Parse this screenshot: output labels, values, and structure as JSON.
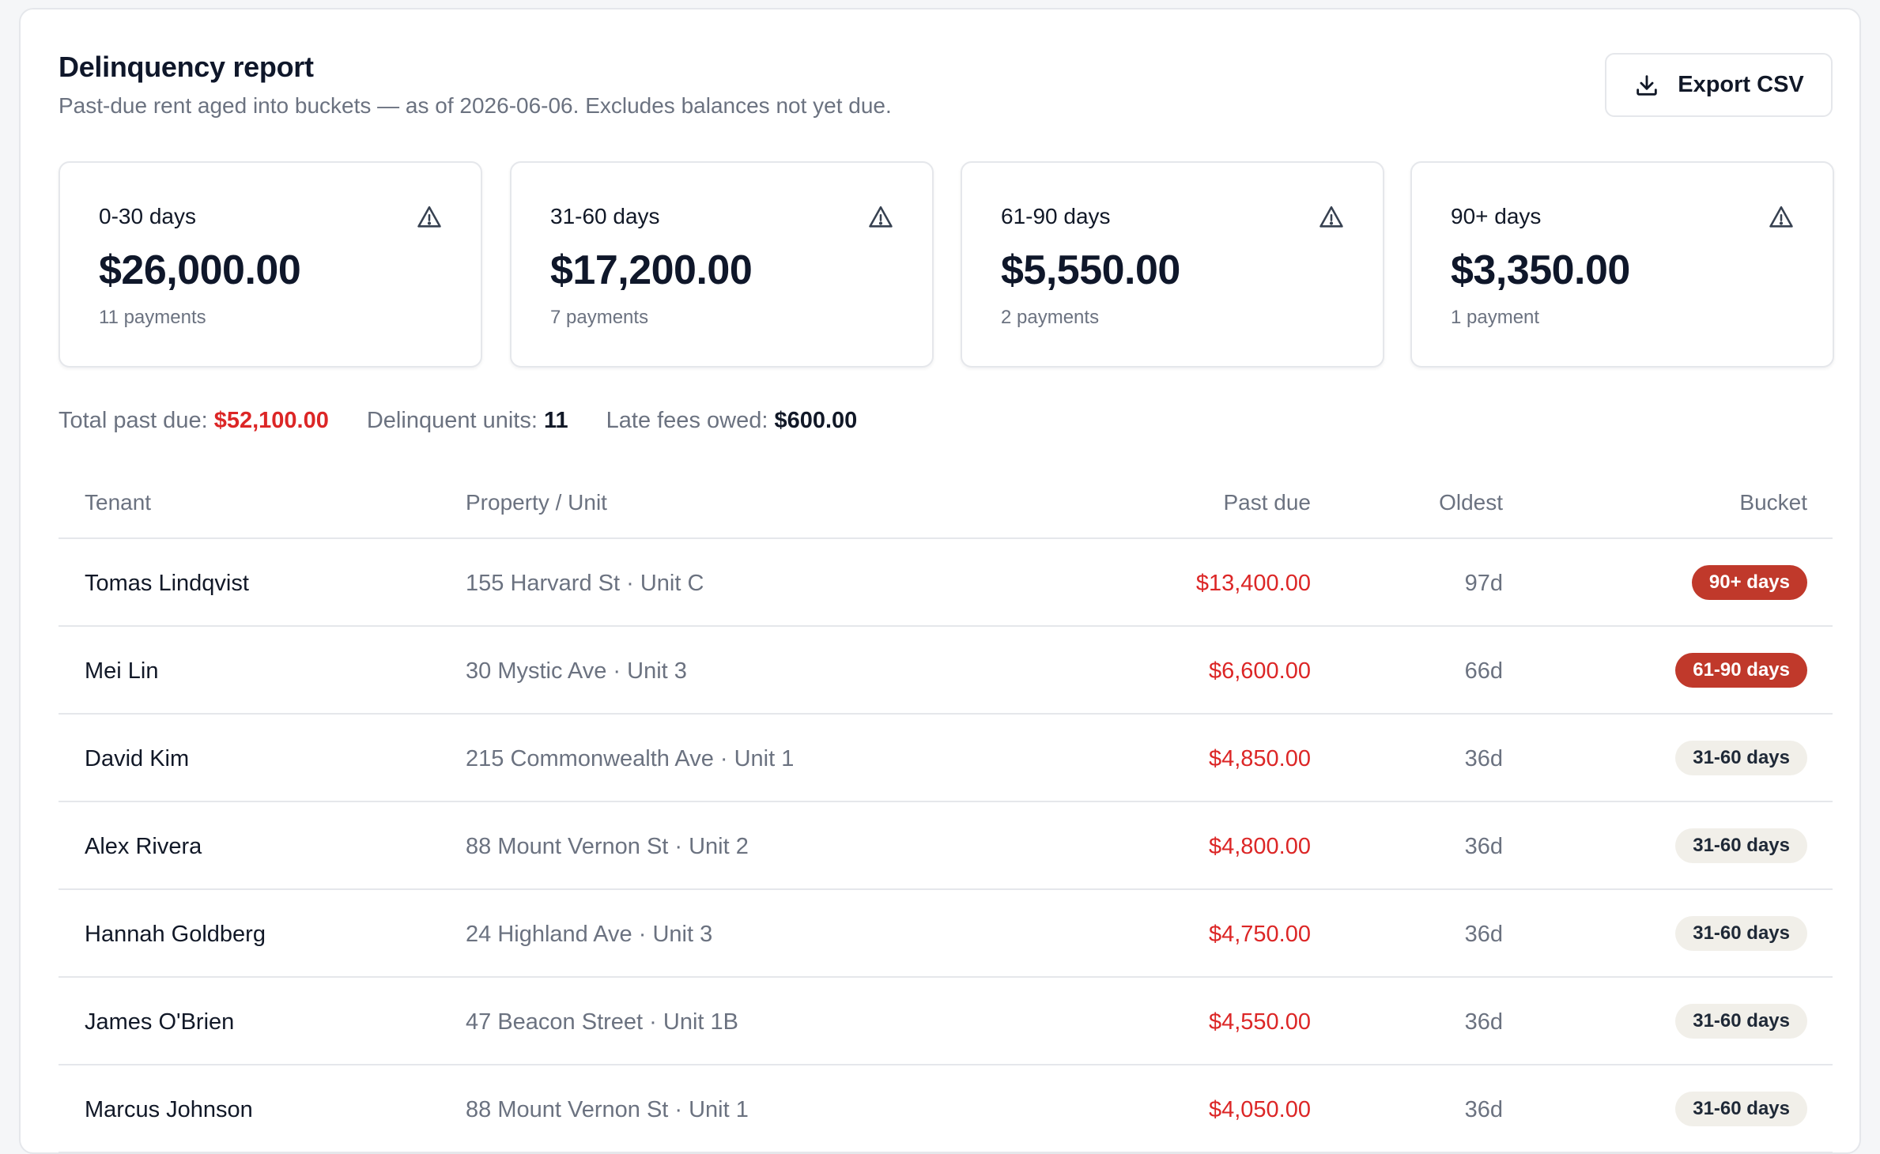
{
  "header": {
    "title": "Delinquency report",
    "subtitle": "Past-due rent aged into buckets — as of 2026-06-06. Excludes balances not yet due.",
    "export_label": "Export CSV"
  },
  "cards": [
    {
      "label": "0-30 days",
      "amount": "$26,000.00",
      "count": "11 payments",
      "icon": "warning-icon"
    },
    {
      "label": "31-60 days",
      "amount": "$17,200.00",
      "count": "7 payments",
      "icon": "warning-icon"
    },
    {
      "label": "61-90 days",
      "amount": "$5,550.00",
      "count": "2 payments",
      "icon": "warning-icon"
    },
    {
      "label": "90+ days",
      "amount": "$3,350.00",
      "count": "1 payment",
      "icon": "warning-icon"
    }
  ],
  "summary": {
    "total_label": "Total past due:",
    "total_value": "$52,100.00",
    "units_label": "Delinquent units:",
    "units_value": "11",
    "fees_label": "Late fees owed:",
    "fees_value": "$600.00"
  },
  "table": {
    "columns": [
      "Tenant",
      "Property / Unit",
      "Past due",
      "Oldest",
      "Bucket"
    ],
    "rows": [
      {
        "tenant": "Tomas Lindqvist",
        "property": "155 Harvard St · Unit C",
        "past_due": "$13,400.00",
        "oldest": "97d",
        "bucket": "90+ days",
        "severity": "high"
      },
      {
        "tenant": "Mei Lin",
        "property": "30 Mystic Ave · Unit 3",
        "past_due": "$6,600.00",
        "oldest": "66d",
        "bucket": "61-90 days",
        "severity": "high"
      },
      {
        "tenant": "David Kim",
        "property": "215 Commonwealth Ave · Unit 1",
        "past_due": "$4,850.00",
        "oldest": "36d",
        "bucket": "31-60 days",
        "severity": "low"
      },
      {
        "tenant": "Alex Rivera",
        "property": "88 Mount Vernon St · Unit 2",
        "past_due": "$4,800.00",
        "oldest": "36d",
        "bucket": "31-60 days",
        "severity": "low"
      },
      {
        "tenant": "Hannah Goldberg",
        "property": "24 Highland Ave · Unit 3",
        "past_due": "$4,750.00",
        "oldest": "36d",
        "bucket": "31-60 days",
        "severity": "low"
      },
      {
        "tenant": "James O'Brien",
        "property": "47 Beacon Street · Unit 1B",
        "past_due": "$4,550.00",
        "oldest": "36d",
        "bucket": "31-60 days",
        "severity": "low"
      },
      {
        "tenant": "Marcus Johnson",
        "property": "88 Mount Vernon St · Unit 1",
        "past_due": "$4,050.00",
        "oldest": "36d",
        "bucket": "31-60 days",
        "severity": "low"
      }
    ]
  },
  "colors": {
    "past_due_red": "#dc2626",
    "severe_badge": "#c0392b",
    "mild_badge": "#f1efe9"
  }
}
